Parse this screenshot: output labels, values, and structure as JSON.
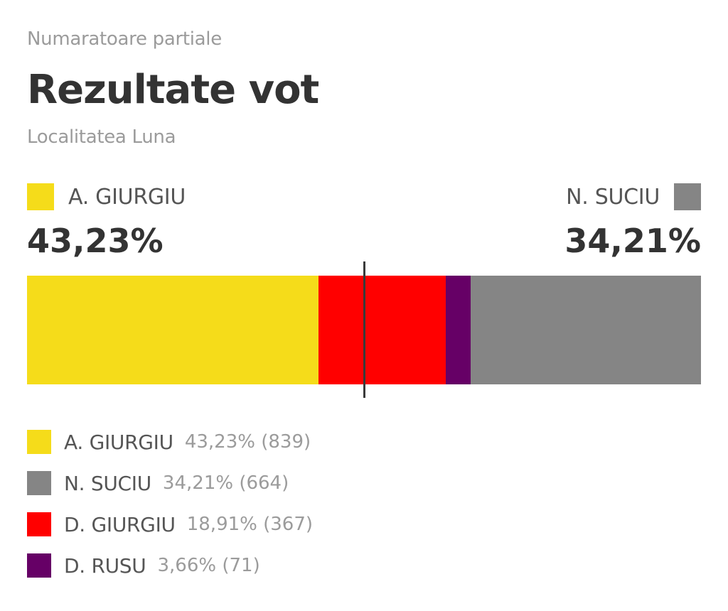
{
  "header": {
    "kicker": "Numaratoare partiale",
    "title": "Rezultate vot",
    "subtitle": "Localitatea Luna"
  },
  "leaders": {
    "left": {
      "name": "A. GIURGIU",
      "pct": "43,23%",
      "color": "#f5dc1a"
    },
    "right": {
      "name": "N. SUCIU",
      "pct": "34,21%",
      "color": "#858585"
    }
  },
  "chart_data": {
    "type": "bar",
    "stacked": true,
    "orientation": "horizontal",
    "title": "Rezultate vot",
    "subtitle": "Localitatea Luna",
    "xlim": [
      0,
      100
    ],
    "midpoint": 50,
    "segments_order": [
      "A. GIURGIU",
      "D. GIURGIU",
      "D. RUSU",
      "N. SUCIU"
    ],
    "series": [
      {
        "name": "A. GIURGIU",
        "value": 43.23,
        "votes": 839,
        "color": "#f5dc1a"
      },
      {
        "name": "N. SUCIU",
        "value": 34.21,
        "votes": 664,
        "color": "#858585"
      },
      {
        "name": "D. GIURGIU",
        "value": 18.91,
        "votes": 367,
        "color": "#ff0000"
      },
      {
        "name": "D. RUSU",
        "value": 3.66,
        "votes": 71,
        "color": "#660066"
      }
    ]
  },
  "legend": [
    {
      "name": "A. GIURGIU",
      "value": "43,23% (839)",
      "color": "#f5dc1a"
    },
    {
      "name": "N. SUCIU",
      "value": "34,21% (664)",
      "color": "#858585"
    },
    {
      "name": "D. GIURGIU",
      "value": "18,91% (367)",
      "color": "#ff0000"
    },
    {
      "name": "D. RUSU",
      "value": "3,66% (71)",
      "color": "#660066"
    }
  ]
}
